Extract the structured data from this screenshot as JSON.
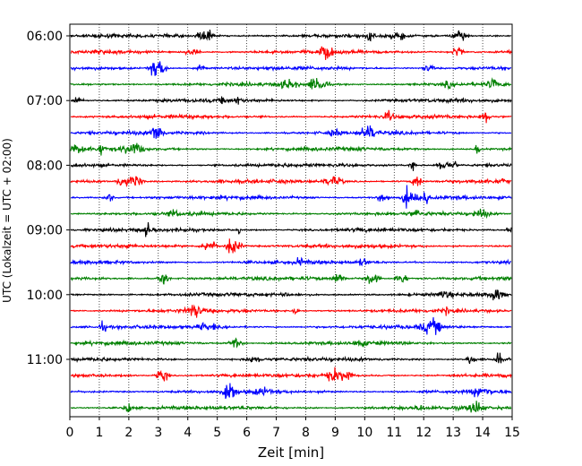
{
  "chart_data": {
    "type": "line",
    "xlabel": "Zeit  [min]",
    "ylabel": "UTC (Lokalzeit = UTC + 02:00)",
    "xlim": [
      0,
      15
    ],
    "x_ticks": [
      "0",
      "1",
      "2",
      "3",
      "4",
      "5",
      "6",
      "7",
      "8",
      "9",
      "10",
      "11",
      "12",
      "13",
      "14",
      "15"
    ],
    "y_ticks": [
      {
        "label": "06:00",
        "row": 0
      },
      {
        "label": "07:00",
        "row": 4
      },
      {
        "label": "08:00",
        "row": 8
      },
      {
        "label": "09:00",
        "row": 12
      },
      {
        "label": "10:00",
        "row": 16
      },
      {
        "label": "11:00",
        "row": 20
      }
    ],
    "traces_per_hour": 4,
    "minutes_per_trace": 15,
    "color_cycle": [
      "#000000",
      "#ff0000",
      "#0000ff",
      "#008000"
    ],
    "grid": "vertical-dotted",
    "rows": [
      {
        "start": "06:00",
        "color": "#000000"
      },
      {
        "start": "06:15",
        "color": "#ff0000"
      },
      {
        "start": "06:30",
        "color": "#0000ff"
      },
      {
        "start": "06:45",
        "color": "#008000"
      },
      {
        "start": "07:00",
        "color": "#000000"
      },
      {
        "start": "07:15",
        "color": "#ff0000"
      },
      {
        "start": "07:30",
        "color": "#0000ff"
      },
      {
        "start": "07:45",
        "color": "#008000"
      },
      {
        "start": "08:00",
        "color": "#000000"
      },
      {
        "start": "08:15",
        "color": "#ff0000"
      },
      {
        "start": "08:30",
        "color": "#0000ff"
      },
      {
        "start": "08:45",
        "color": "#008000"
      },
      {
        "start": "09:00",
        "color": "#000000"
      },
      {
        "start": "09:15",
        "color": "#ff0000"
      },
      {
        "start": "09:30",
        "color": "#0000ff"
      },
      {
        "start": "09:45",
        "color": "#008000"
      },
      {
        "start": "10:00",
        "color": "#000000"
      },
      {
        "start": "10:15",
        "color": "#ff0000"
      },
      {
        "start": "10:30",
        "color": "#0000ff"
      },
      {
        "start": "10:45",
        "color": "#008000"
      },
      {
        "start": "11:00",
        "color": "#000000"
      },
      {
        "start": "11:15",
        "color": "#ff0000"
      },
      {
        "start": "11:30",
        "color": "#0000ff"
      },
      {
        "start": "11:45",
        "color": "#008000"
      }
    ]
  }
}
